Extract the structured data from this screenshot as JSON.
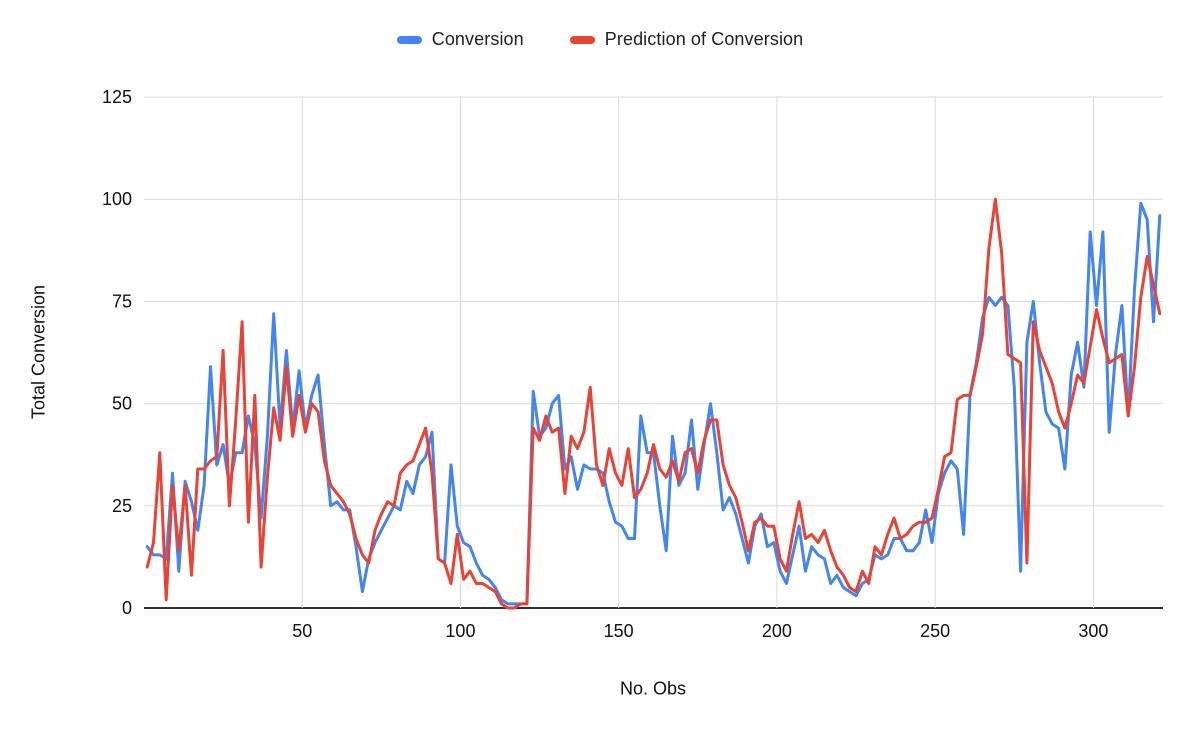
{
  "page": {
    "background": "#ffffff"
  },
  "legend": {
    "items": [
      {
        "label": "Conversion",
        "color": "#4285f4"
      },
      {
        "label": "Prediction of Conversion",
        "color": "#ea4335"
      }
    ]
  },
  "axes": {
    "y_title": "Total Conversion",
    "x_title": "No. Obs",
    "grid_color": "#d9d9d9",
    "baseline_color": "#333333",
    "tick_label_color": "#111111"
  },
  "chart_data": {
    "type": "line",
    "title": "",
    "xlabel": "No. Obs",
    "ylabel": "Total Conversion",
    "xlim": [
      0,
      322
    ],
    "ylim": [
      0,
      125
    ],
    "x_ticks": [
      50,
      100,
      150,
      200,
      250,
      300
    ],
    "y_ticks": [
      0,
      25,
      50,
      75,
      100,
      125
    ],
    "grid": true,
    "legend_position": "top",
    "line_width": 3,
    "x": [
      1,
      3,
      5,
      7,
      9,
      11,
      13,
      15,
      17,
      19,
      21,
      23,
      25,
      27,
      29,
      31,
      33,
      35,
      37,
      39,
      41,
      43,
      45,
      47,
      49,
      51,
      53,
      55,
      57,
      59,
      61,
      63,
      65,
      67,
      69,
      71,
      73,
      75,
      77,
      79,
      81,
      83,
      85,
      87,
      89,
      91,
      93,
      95,
      97,
      99,
      101,
      103,
      105,
      107,
      109,
      111,
      113,
      115,
      117,
      119,
      121,
      123,
      125,
      127,
      129,
      131,
      133,
      135,
      137,
      139,
      141,
      143,
      145,
      147,
      149,
      151,
      153,
      155,
      157,
      159,
      161,
      163,
      165,
      167,
      169,
      171,
      173,
      175,
      177,
      179,
      181,
      183,
      185,
      187,
      189,
      191,
      193,
      195,
      197,
      199,
      201,
      203,
      205,
      207,
      209,
      211,
      213,
      215,
      217,
      219,
      221,
      223,
      225,
      227,
      229,
      231,
      233,
      235,
      237,
      239,
      241,
      243,
      245,
      247,
      249,
      251,
      253,
      255,
      257,
      259,
      261,
      263,
      265,
      267,
      269,
      271,
      273,
      275,
      277,
      279,
      281,
      283,
      285,
      287,
      289,
      291,
      293,
      295,
      297,
      299,
      301,
      303,
      305,
      307,
      309,
      311,
      313,
      315,
      317,
      319,
      321
    ],
    "series": [
      {
        "name": "Conversion",
        "color": "#4285f4",
        "values": [
          15,
          13,
          13,
          12,
          33,
          9,
          31,
          26,
          19,
          30,
          59,
          35,
          40,
          30,
          38,
          38,
          47,
          40,
          22,
          42,
          72,
          44,
          63,
          44,
          58,
          44,
          52,
          57,
          40,
          25,
          26,
          24,
          24,
          15,
          4,
          12,
          16,
          19,
          22,
          25,
          24,
          31,
          28,
          35,
          37,
          43,
          12,
          11,
          35,
          20,
          16,
          15,
          11,
          8,
          7,
          5,
          2,
          1,
          1,
          1,
          1,
          53,
          42,
          44,
          50,
          52,
          34,
          37,
          29,
          35,
          34,
          34,
          33,
          26,
          21,
          20,
          17,
          17,
          47,
          38,
          38,
          25,
          14,
          42,
          30,
          33,
          46,
          29,
          40,
          50,
          38,
          24,
          27,
          23,
          17,
          11,
          20,
          23,
          15,
          16,
          9,
          6,
          13,
          20,
          9,
          15,
          13,
          12,
          6,
          8,
          5,
          4,
          3,
          6,
          7,
          13,
          12,
          13,
          17,
          17,
          14,
          14,
          16,
          24,
          16,
          28,
          33,
          36,
          34,
          18,
          52,
          60,
          71,
          76,
          74,
          76,
          74,
          54,
          9,
          65,
          75,
          60,
          48,
          45,
          44,
          34,
          57,
          65,
          54,
          92,
          74,
          92,
          43,
          62,
          74,
          47,
          78,
          99,
          95,
          70,
          96
        ]
      },
      {
        "name": "Prediction of Conversion",
        "color": "#ea4335",
        "values": [
          10,
          16,
          38,
          2,
          30,
          14,
          30,
          8,
          34,
          34,
          36,
          37,
          63,
          25,
          46,
          70,
          21,
          52,
          10,
          32,
          49,
          41,
          59,
          42,
          52,
          43,
          50,
          48,
          36,
          30,
          28,
          26,
          23,
          17,
          13,
          11,
          19,
          23,
          26,
          25,
          33,
          35,
          36,
          40,
          44,
          33,
          12,
          11,
          6,
          18,
          7,
          9,
          6,
          6,
          5,
          4,
          1,
          0,
          0,
          1,
          1,
          44,
          41,
          47,
          43,
          44,
          28,
          42,
          39,
          43,
          54,
          35,
          30,
          39,
          33,
          30,
          39,
          27,
          29,
          33,
          40,
          34,
          32,
          36,
          31,
          38,
          39,
          33,
          41,
          46,
          46,
          35,
          30,
          27,
          21,
          14,
          21,
          22,
          20,
          20,
          12,
          9,
          18,
          26,
          17,
          18,
          16,
          19,
          14,
          10,
          8,
          5,
          4,
          9,
          6,
          15,
          13,
          18,
          22,
          17,
          18,
          20,
          21,
          21,
          22,
          29,
          37,
          38,
          51,
          52,
          52,
          59,
          67,
          88,
          100,
          87,
          62,
          61,
          60,
          11,
          70,
          63,
          59,
          55,
          48,
          44,
          50,
          57,
          55,
          64,
          73,
          66,
          60,
          61,
          62,
          47,
          59,
          76,
          86,
          79,
          72
        ]
      }
    ]
  }
}
